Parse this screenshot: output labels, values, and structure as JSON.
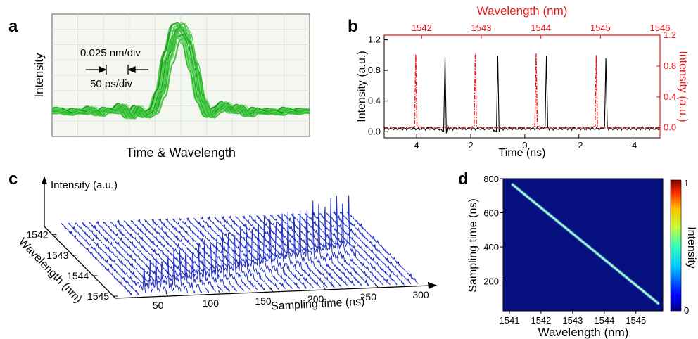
{
  "chart_data": [
    {
      "panel": "a",
      "type": "line",
      "title": "",
      "xlabel": "Time & Wavelength",
      "ylabel": "Intensity",
      "annotations": [
        "0.025 nm/div",
        "50 ps/div"
      ],
      "grid": true,
      "legend": "none",
      "colors": {
        "trace": "#22c022",
        "trace_dark": "#0a8a0a",
        "plot_bg": "#f3f7ef",
        "grid": "#d9e2d3"
      },
      "series": [
        {
          "x": [
            0,
            0.03,
            0.06,
            0.09,
            0.12,
            0.15,
            0.18,
            0.21,
            0.24,
            0.27,
            0.3,
            0.33,
            0.36,
            0.39,
            0.42,
            0.45,
            0.48,
            0.5,
            0.52,
            0.55,
            0.58,
            0.61,
            0.64,
            0.67,
            0.7,
            0.73,
            0.76,
            0.79,
            0.82,
            0.85,
            0.88,
            0.91,
            0.94,
            0.97,
            1.0
          ],
          "y": [
            0.1,
            0.12,
            0.08,
            0.11,
            0.09,
            0.13,
            0.07,
            0.12,
            0.1,
            0.16,
            0.04,
            0.14,
            0.05,
            0.1,
            0.3,
            0.7,
            0.98,
            1.0,
            0.92,
            0.6,
            0.22,
            0.05,
            0.12,
            0.18,
            0.1,
            0.15,
            0.06,
            0.12,
            0.09,
            0.11,
            0.08,
            0.12,
            0.09,
            0.11,
            0.1
          ]
        }
      ]
    },
    {
      "panel": "b",
      "type": "line",
      "xlabel": "Time (ns)",
      "ylabel": "Intensity (a.u.)",
      "x2label": "Wavelength (nm)",
      "y2label": "Intensity (a.u.)",
      "xlim": [
        5.2,
        -5.0
      ],
      "ylim": [
        -0.08,
        1.26
      ],
      "x2lim": [
        1541.37,
        1546.0
      ],
      "y2lim": [
        -0.13,
        1.2
      ],
      "xticks": [
        "4",
        "2",
        "0",
        "-2",
        "-4"
      ],
      "xtick_values": [
        4,
        2,
        0,
        -2,
        -4
      ],
      "yticks": [
        "0.0",
        "0.4",
        "0.8",
        "1.2"
      ],
      "ytick_values": [
        0.0,
        0.4,
        0.8,
        1.2
      ],
      "x2ticks": [
        "1542",
        "1543",
        "1544",
        "1545",
        "1546"
      ],
      "x2tick_values": [
        1542,
        1543,
        1544,
        1545,
        1546
      ],
      "y2ticks": [
        "0.0",
        "0.4",
        "0.8",
        "1.2"
      ],
      "y2tick_values": [
        0.0,
        0.4,
        0.8,
        1.2
      ],
      "grid": false,
      "legend": "none",
      "colors": {
        "time_trace": "#000000",
        "wavelength_trace": "#e8191b"
      },
      "series": [
        {
          "axis": "time",
          "x": [
            5.2,
            3.2,
            3.0,
            2.95,
            2.9,
            2.85,
            2.8,
            2.6,
            1.2,
            1.05,
            1.0,
            0.95,
            0.9,
            0.8,
            -0.7,
            -0.75,
            -0.8,
            -0.85,
            -0.9,
            -2.9,
            -2.95,
            -3.0,
            -3.05,
            -3.1,
            -5.0
          ],
          "y": [
            0.04,
            0.04,
            0.0,
            0.98,
            -0.02,
            0.08,
            0.04,
            0.04,
            0.04,
            0.0,
            0.99,
            0.0,
            0.05,
            0.04,
            0.04,
            0.07,
            0.99,
            0.06,
            0.04,
            0.04,
            0.07,
            0.96,
            0.06,
            0.04,
            0.04
          ]
        },
        {
          "axis": "wavelength",
          "x": [
            1541.37,
            1541.8,
            1541.88,
            1541.9,
            1541.92,
            1542.0,
            1542.8,
            1542.88,
            1542.9,
            1542.92,
            1543.0,
            1543.82,
            1543.9,
            1543.92,
            1543.94,
            1544.02,
            1544.82,
            1544.91,
            1544.93,
            1544.95,
            1545.03,
            1546.0
          ],
          "y": [
            0.0,
            0.0,
            0.02,
            0.95,
            0.02,
            0.0,
            0.0,
            0.02,
            0.97,
            0.02,
            0.0,
            0.0,
            0.02,
            0.96,
            0.02,
            0.0,
            0.0,
            0.02,
            0.94,
            0.02,
            0.0,
            0.0
          ]
        }
      ]
    },
    {
      "panel": "c",
      "type": "line",
      "xlabel": "Sampling time (ns)",
      "ylabel": "Wavelength (nm)",
      "zlabel": "Intensity (a.u.)",
      "xticks": [
        "50",
        "100",
        "150",
        "200",
        "250",
        "300"
      ],
      "xtick_values": [
        50,
        100,
        150,
        200,
        250,
        300
      ],
      "yticks": [
        "1542",
        "1543",
        "1544",
        "1545"
      ],
      "ytick_values": [
        1542,
        1543,
        1544,
        1545
      ],
      "legend": "none",
      "colors": {
        "trace": "#1f2fc0"
      },
      "peak_wavelengths": [
        1545.0,
        1544.95,
        1544.9,
        1544.85,
        1544.8,
        1544.75,
        1544.7,
        1544.65,
        1544.6,
        1544.55,
        1544.5,
        1544.45,
        1544.4,
        1544.35,
        1544.3,
        1544.25,
        1544.2,
        1544.15,
        1544.1,
        1544.05,
        1544.0,
        1543.95,
        1543.9,
        1543.85,
        1543.8,
        1543.75,
        1543.7,
        1543.65,
        1543.6,
        1543.55,
        1543.5,
        1543.45,
        1543.4
      ],
      "peak_times": [
        30,
        37,
        44,
        51,
        58,
        65,
        72,
        79,
        86,
        93,
        100,
        107,
        114,
        121,
        128,
        135,
        142,
        149,
        156,
        163,
        170,
        177,
        184,
        191,
        198,
        205,
        212,
        219,
        226,
        233,
        240,
        247,
        254
      ],
      "peak_heights": [
        0.42,
        0.45,
        0.48,
        0.5,
        0.52,
        0.55,
        0.57,
        0.6,
        0.62,
        0.64,
        0.66,
        0.68,
        0.7,
        0.72,
        0.74,
        0.75,
        0.77,
        0.79,
        0.8,
        0.82,
        0.84,
        0.85,
        0.87,
        0.88,
        0.9,
        0.91,
        0.93,
        0.94,
        0.95,
        0.96,
        0.98,
        0.99,
        1.0
      ]
    },
    {
      "panel": "d",
      "type": "heatmap",
      "xlabel": "Wavelength (nm)",
      "ylabel": "Sampling time (ns)",
      "colorbar_label": "Intensity",
      "xlim": [
        1540.8,
        1545.85
      ],
      "ylim": [
        25,
        800
      ],
      "xticks": [
        "1541",
        "1542",
        "1543",
        "1544",
        "1545"
      ],
      "xtick_values": [
        1541,
        1542,
        1543,
        1544,
        1545
      ],
      "yticks": [
        "200",
        "400",
        "600",
        "800"
      ],
      "ytick_values": [
        200,
        400,
        600,
        800
      ],
      "colorbar_ticks": [
        "0",
        "1"
      ],
      "colorbar_tick_values": [
        0,
        1
      ],
      "line_start": [
        1541.1,
        765
      ],
      "line_end": [
        1545.7,
        70
      ],
      "colors": {
        "background": "#06107e",
        "ridge": "#8fe3c7",
        "ridge_core": "#c8f7d6"
      }
    }
  ],
  "panel_labels": [
    "a",
    "b",
    "c",
    "d"
  ]
}
